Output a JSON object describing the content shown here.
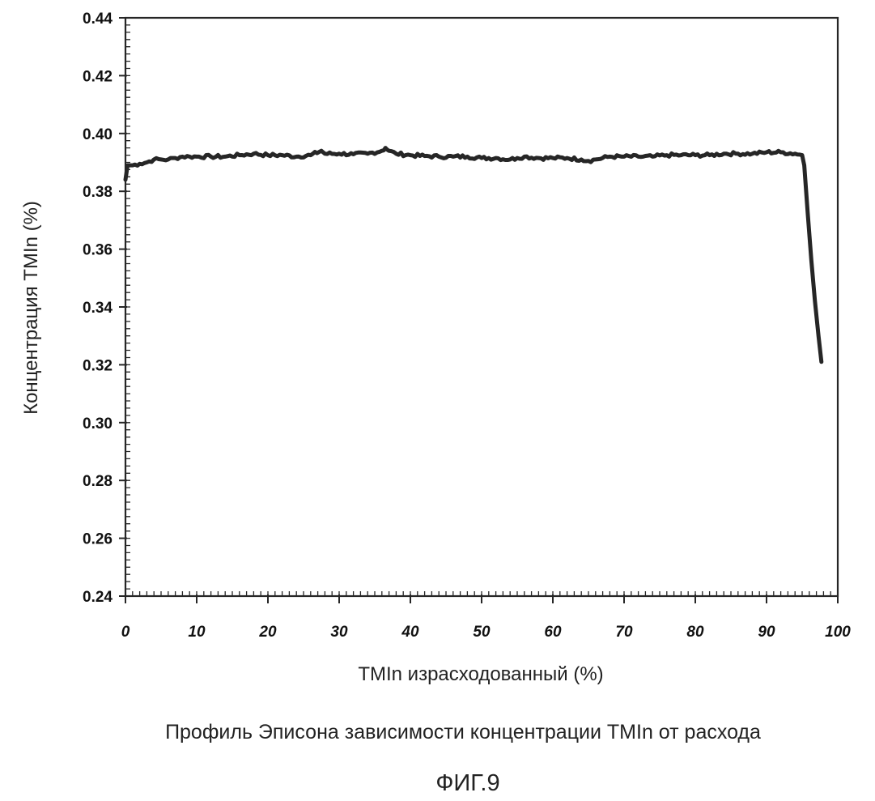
{
  "chart_data": {
    "type": "line",
    "xlabel": "TMIn израсходованный (%)",
    "ylabel": "Концентрация TMIn (%)",
    "xlim": [
      0,
      100
    ],
    "ylim": [
      0.24,
      0.44
    ],
    "x_ticks": [
      0,
      10,
      20,
      30,
      40,
      50,
      60,
      70,
      80,
      90,
      100
    ],
    "y_ticks": [
      0.24,
      0.26,
      0.28,
      0.3,
      0.32,
      0.34,
      0.36,
      0.38,
      0.4,
      0.42,
      0.44
    ],
    "y_tick_labels": [
      "0.24",
      "0.26",
      "0.28",
      "0.30",
      "0.32",
      "0.34",
      "0.36",
      "0.38",
      "0.40",
      "0.42",
      "0.44"
    ],
    "grid": false,
    "legend": "none",
    "line_color": "#262626",
    "series": [
      {
        "points": [
          [
            0.0,
            0.384
          ],
          [
            0.3,
            0.389
          ],
          [
            1,
            0.389
          ],
          [
            2,
            0.3895
          ],
          [
            3,
            0.39
          ],
          [
            4,
            0.391
          ],
          [
            5,
            0.391
          ],
          [
            6,
            0.391
          ],
          [
            7,
            0.3915
          ],
          [
            8,
            0.392
          ],
          [
            9,
            0.392
          ],
          [
            10,
            0.392
          ],
          [
            12,
            0.392
          ],
          [
            14,
            0.392
          ],
          [
            16,
            0.3925
          ],
          [
            18,
            0.393
          ],
          [
            20,
            0.3925
          ],
          [
            22,
            0.3925
          ],
          [
            24,
            0.392
          ],
          [
            26,
            0.3925
          ],
          [
            27.5,
            0.394
          ],
          [
            28,
            0.393
          ],
          [
            30,
            0.393
          ],
          [
            32,
            0.3928
          ],
          [
            34,
            0.393
          ],
          [
            36,
            0.394
          ],
          [
            36.5,
            0.395
          ],
          [
            37,
            0.394
          ],
          [
            38,
            0.393
          ],
          [
            40,
            0.3925
          ],
          [
            42,
            0.3922
          ],
          [
            44,
            0.392
          ],
          [
            46,
            0.392
          ],
          [
            48,
            0.392
          ],
          [
            50,
            0.3915
          ],
          [
            52,
            0.3915
          ],
          [
            54,
            0.391
          ],
          [
            55,
            0.3915
          ],
          [
            56,
            0.392
          ],
          [
            58,
            0.3915
          ],
          [
            60,
            0.3915
          ],
          [
            62,
            0.3915
          ],
          [
            64,
            0.391
          ],
          [
            65,
            0.3905
          ],
          [
            66,
            0.391
          ],
          [
            68,
            0.392
          ],
          [
            70,
            0.392
          ],
          [
            72,
            0.392
          ],
          [
            74,
            0.392
          ],
          [
            76,
            0.3925
          ],
          [
            78,
            0.3925
          ],
          [
            80,
            0.3925
          ],
          [
            82,
            0.3925
          ],
          [
            84,
            0.393
          ],
          [
            86,
            0.393
          ],
          [
            88,
            0.393
          ],
          [
            90,
            0.3935
          ],
          [
            92,
            0.3935
          ],
          [
            94,
            0.393
          ],
          [
            95.0,
            0.3925
          ],
          [
            95.3,
            0.389
          ],
          [
            95.8,
            0.372
          ],
          [
            96.3,
            0.356
          ],
          [
            96.8,
            0.342
          ],
          [
            97.3,
            0.33
          ],
          [
            97.7,
            0.321
          ]
        ]
      }
    ]
  },
  "caption": "Профиль Эписона зависимости концентрации TMIn от расхода",
  "figure_number": "ФИГ.9"
}
